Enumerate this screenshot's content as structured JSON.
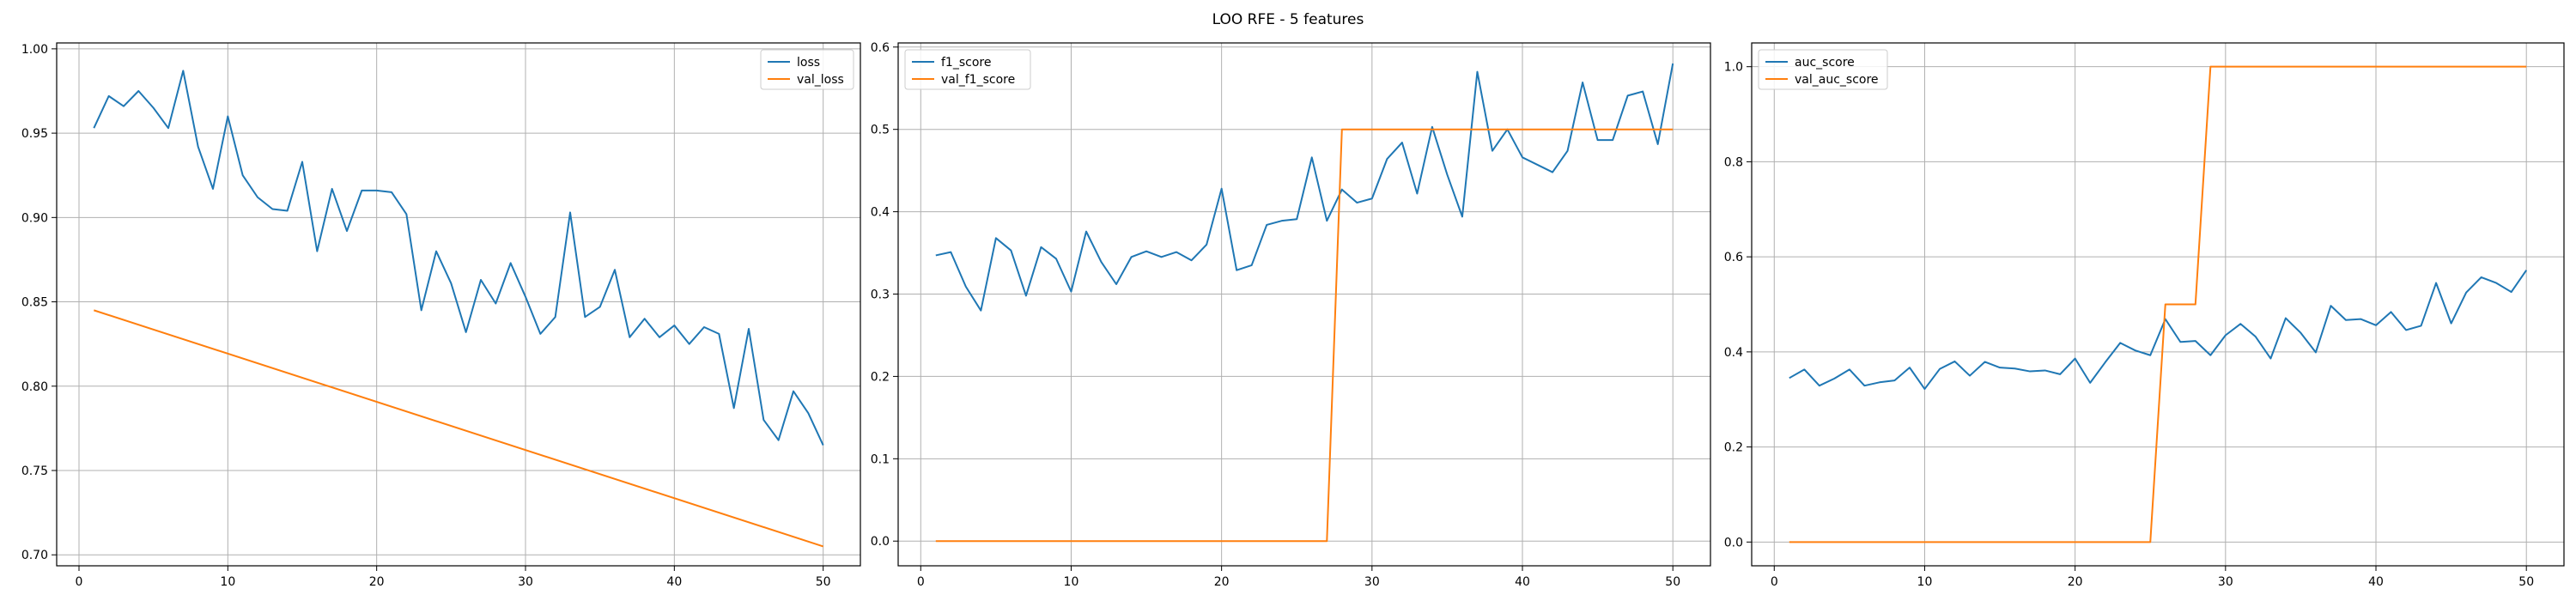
{
  "figure_title": "LOO RFE - 5 features",
  "colors": {
    "series_1": "#1f77b4",
    "series_2": "#ff7f0e",
    "grid": "#b0b0b0",
    "frame": "#000000"
  },
  "chart_data": [
    {
      "type": "line",
      "title": "",
      "xlabel": "",
      "ylabel": "",
      "grid": true,
      "legend_placement": "top-right",
      "xlim": [
        -1.5,
        52.5
      ],
      "ylim": [
        0.6935,
        1.0035
      ],
      "xticks": [
        0,
        10,
        20,
        30,
        40,
        50
      ],
      "yticks": [
        0.7,
        0.75,
        0.8,
        0.85,
        0.9,
        0.95,
        1.0
      ],
      "ytick_labels": [
        "0.70",
        "0.75",
        "0.80",
        "0.85",
        "0.90",
        "0.95",
        "1.00"
      ],
      "series": [
        {
          "name": "loss",
          "color": "#1f77b4",
          "x": [
            1,
            2,
            3,
            4,
            5,
            6,
            7,
            8,
            9,
            10,
            11,
            12,
            13,
            14,
            15,
            16,
            17,
            18,
            19,
            20,
            21,
            22,
            23,
            24,
            25,
            26,
            27,
            28,
            29,
            30,
            31,
            32,
            33,
            34,
            35,
            36,
            37,
            38,
            39,
            40,
            41,
            42,
            43,
            44,
            45,
            46,
            47,
            48,
            49,
            50
          ],
          "y": [
            0.953,
            0.972,
            0.966,
            0.975,
            0.965,
            0.953,
            0.987,
            0.942,
            0.917,
            0.96,
            0.925,
            0.912,
            0.905,
            0.904,
            0.933,
            0.88,
            0.917,
            0.892,
            0.916,
            0.916,
            0.915,
            0.902,
            0.845,
            0.88,
            0.861,
            0.832,
            0.863,
            0.849,
            0.873,
            0.853,
            0.831,
            0.841,
            0.903,
            0.841,
            0.847,
            0.869,
            0.829,
            0.84,
            0.829,
            0.836,
            0.825,
            0.835,
            0.831,
            0.787,
            0.834,
            0.78,
            0.768,
            0.797,
            0.784,
            0.765
          ]
        },
        {
          "name": "val_loss",
          "color": "#ff7f0e",
          "x": [
            1,
            50
          ],
          "y": [
            0.845,
            0.705
          ]
        }
      ]
    },
    {
      "type": "line",
      "title": "",
      "xlabel": "",
      "ylabel": "",
      "grid": true,
      "legend_placement": "top-left",
      "xlim": [
        -1.5,
        52.5
      ],
      "ylim": [
        -0.03,
        0.605
      ],
      "xticks": [
        0,
        10,
        20,
        30,
        40,
        50
      ],
      "yticks": [
        0.0,
        0.1,
        0.2,
        0.3,
        0.4,
        0.5,
        0.6
      ],
      "ytick_labels": [
        "0.0",
        "0.1",
        "0.2",
        "0.3",
        "0.4",
        "0.5",
        "0.6"
      ],
      "series": [
        {
          "name": "f1_score",
          "color": "#1f77b4",
          "x": [
            1,
            2,
            3,
            4,
            5,
            6,
            7,
            8,
            9,
            10,
            11,
            12,
            13,
            14,
            15,
            16,
            17,
            18,
            19,
            20,
            21,
            22,
            23,
            24,
            25,
            26,
            27,
            28,
            29,
            30,
            31,
            32,
            33,
            34,
            35,
            36,
            37,
            38,
            39,
            40,
            41,
            42,
            43,
            44,
            45,
            46,
            47,
            48,
            49,
            50
          ],
          "y": [
            0.347,
            0.351,
            0.309,
            0.28,
            0.368,
            0.353,
            0.298,
            0.357,
            0.343,
            0.303,
            0.376,
            0.339,
            0.312,
            0.345,
            0.352,
            0.345,
            0.351,
            0.341,
            0.36,
            0.428,
            0.329,
            0.335,
            0.384,
            0.389,
            0.391,
            0.466,
            0.389,
            0.427,
            0.411,
            0.416,
            0.464,
            0.484,
            0.422,
            0.503,
            0.445,
            0.394,
            0.57,
            0.474,
            0.5,
            0.466,
            0.457,
            0.448,
            0.474,
            0.557,
            0.487,
            0.487,
            0.541,
            0.546,
            0.482,
            0.58
          ]
        },
        {
          "name": "val_f1_score",
          "color": "#ff7f0e",
          "x": [
            1,
            27,
            28,
            50
          ],
          "y": [
            0.0,
            0.0,
            0.5,
            0.5
          ]
        }
      ]
    },
    {
      "type": "line",
      "title": "",
      "xlabel": "",
      "ylabel": "",
      "grid": true,
      "legend_placement": "top-left",
      "xlim": [
        -1.5,
        52.5
      ],
      "ylim": [
        -0.05,
        1.05
      ],
      "xticks": [
        0,
        10,
        20,
        30,
        40,
        50
      ],
      "yticks": [
        0.0,
        0.2,
        0.4,
        0.6,
        0.8,
        1.0
      ],
      "ytick_labels": [
        "0.0",
        "0.2",
        "0.4",
        "0.6",
        "0.8",
        "1.0"
      ],
      "series": [
        {
          "name": "auc_score",
          "color": "#1f77b4",
          "x": [
            1,
            2,
            3,
            4,
            5,
            6,
            7,
            8,
            9,
            10,
            11,
            12,
            13,
            14,
            15,
            16,
            17,
            18,
            19,
            20,
            21,
            22,
            23,
            24,
            25,
            26,
            27,
            28,
            29,
            30,
            31,
            32,
            33,
            34,
            35,
            36,
            37,
            38,
            39,
            40,
            41,
            42,
            43,
            44,
            45,
            46,
            47,
            48,
            49,
            50
          ],
          "y": [
            0.345,
            0.363,
            0.329,
            0.344,
            0.363,
            0.329,
            0.336,
            0.34,
            0.367,
            0.322,
            0.364,
            0.38,
            0.35,
            0.379,
            0.367,
            0.365,
            0.359,
            0.361,
            0.353,
            0.386,
            0.335,
            0.378,
            0.419,
            0.403,
            0.393,
            0.469,
            0.421,
            0.423,
            0.393,
            0.435,
            0.459,
            0.432,
            0.386,
            0.471,
            0.44,
            0.399,
            0.497,
            0.467,
            0.469,
            0.456,
            0.484,
            0.446,
            0.455,
            0.545,
            0.46,
            0.525,
            0.557,
            0.545,
            0.526,
            0.572
          ]
        },
        {
          "name": "val_auc_score",
          "color": "#ff7f0e",
          "x": [
            1,
            25,
            26,
            28,
            29,
            50
          ],
          "y": [
            0.0,
            0.0,
            0.5,
            0.5,
            1.0,
            1.0
          ]
        }
      ]
    }
  ]
}
